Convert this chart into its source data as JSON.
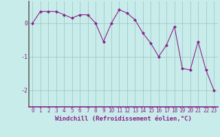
{
  "x": [
    0,
    1,
    2,
    3,
    4,
    5,
    6,
    7,
    8,
    9,
    10,
    11,
    12,
    13,
    14,
    15,
    16,
    17,
    18,
    19,
    20,
    21,
    22,
    23
  ],
  "y": [
    0.0,
    0.35,
    0.35,
    0.35,
    0.25,
    0.15,
    0.25,
    0.25,
    0.0,
    -0.55,
    0.0,
    0.4,
    0.3,
    0.1,
    -0.3,
    -0.6,
    -1.0,
    -0.65,
    -0.1,
    -1.35,
    -1.4,
    -0.55,
    -1.4,
    -2.0
  ],
  "line_color": "#882288",
  "marker": "D",
  "marker_size": 2,
  "bg_color": "#c8ecea",
  "grid_color": "#a0c8c8",
  "axis_color": "#882288",
  "xlabel": "Windchill (Refroidissement éolien,°C)",
  "xlabel_fontsize": 6.5,
  "yticks": [
    0,
    -1,
    -2
  ],
  "ylim": [
    -2.5,
    0.65
  ],
  "xlim": [
    -0.5,
    23.5
  ],
  "xtick_labels": [
    "0",
    "1",
    "2",
    "3",
    "4",
    "5",
    "6",
    "7",
    "8",
    "9",
    "10",
    "11",
    "12",
    "13",
    "14",
    "15",
    "16",
    "17",
    "18",
    "19",
    "20",
    "21",
    "22",
    "23"
  ],
  "tick_fontsize": 5.5,
  "left_spine_color": "#666666",
  "xaxis_line_color": "#882288"
}
